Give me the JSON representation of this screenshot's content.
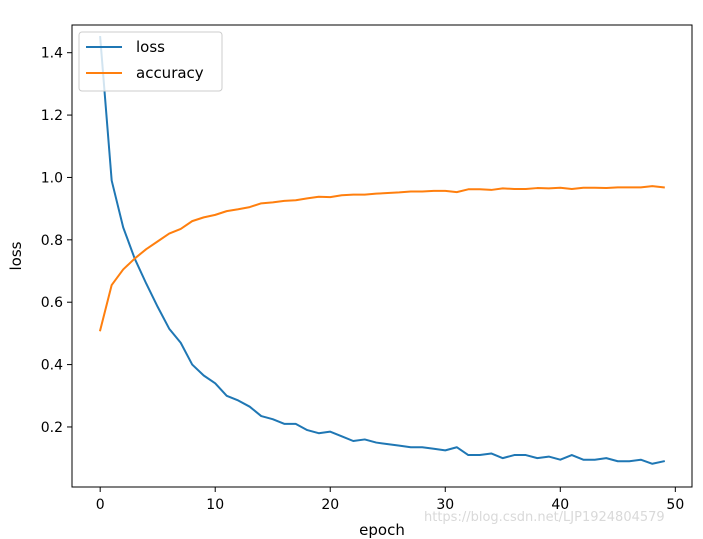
{
  "chart_data": {
    "type": "line",
    "title": "",
    "xlabel": "epoch",
    "ylabel": "loss",
    "xlim": [
      -2.45,
      51.45
    ],
    "ylim": [
      0.0075,
      1.4888
    ],
    "xticks": [
      0,
      10,
      20,
      30,
      40,
      50
    ],
    "yticks": [
      0.2,
      0.4,
      0.6,
      0.8,
      1.0,
      1.2,
      1.4
    ],
    "xtick_labels": [
      "0",
      "10",
      "20",
      "30",
      "40",
      "50"
    ],
    "ytick_labels": [
      "0.2",
      "0.4",
      "0.6",
      "0.8",
      "1.0",
      "1.2",
      "1.4"
    ],
    "grid": false,
    "legend_position": "upper-left",
    "x": [
      0,
      1,
      2,
      3,
      4,
      5,
      6,
      7,
      8,
      9,
      10,
      11,
      12,
      13,
      14,
      15,
      16,
      17,
      18,
      19,
      20,
      21,
      22,
      23,
      24,
      25,
      26,
      27,
      28,
      29,
      30,
      31,
      32,
      33,
      34,
      35,
      36,
      37,
      38,
      39,
      40,
      41,
      42,
      43,
      44,
      45,
      46,
      47,
      48,
      49
    ],
    "series": [
      {
        "name": "loss",
        "color": "#1f77b4",
        "values": [
          1.45,
          0.99,
          0.84,
          0.74,
          0.66,
          0.585,
          0.515,
          0.47,
          0.4,
          0.365,
          0.34,
          0.3,
          0.285,
          0.265,
          0.235,
          0.225,
          0.21,
          0.21,
          0.19,
          0.18,
          0.185,
          0.17,
          0.155,
          0.16,
          0.15,
          0.145,
          0.14,
          0.135,
          0.135,
          0.13,
          0.125,
          0.135,
          0.11,
          0.11,
          0.115,
          0.1,
          0.11,
          0.11,
          0.1,
          0.105,
          0.095,
          0.11,
          0.095,
          0.095,
          0.1,
          0.09,
          0.09,
          0.095,
          0.082,
          0.09
        ]
      },
      {
        "name": "accuracy",
        "color": "#ff7f0e",
        "values": [
          0.51,
          0.655,
          0.705,
          0.74,
          0.77,
          0.795,
          0.82,
          0.835,
          0.86,
          0.872,
          0.88,
          0.892,
          0.898,
          0.905,
          0.917,
          0.92,
          0.925,
          0.927,
          0.933,
          0.938,
          0.937,
          0.943,
          0.945,
          0.945,
          0.948,
          0.95,
          0.952,
          0.955,
          0.955,
          0.957,
          0.957,
          0.953,
          0.962,
          0.962,
          0.96,
          0.965,
          0.963,
          0.963,
          0.966,
          0.965,
          0.967,
          0.963,
          0.967,
          0.967,
          0.966,
          0.968,
          0.968,
          0.968,
          0.972,
          0.968
        ]
      }
    ]
  },
  "watermark": "https://blog.csdn.net/LJP1924804579"
}
